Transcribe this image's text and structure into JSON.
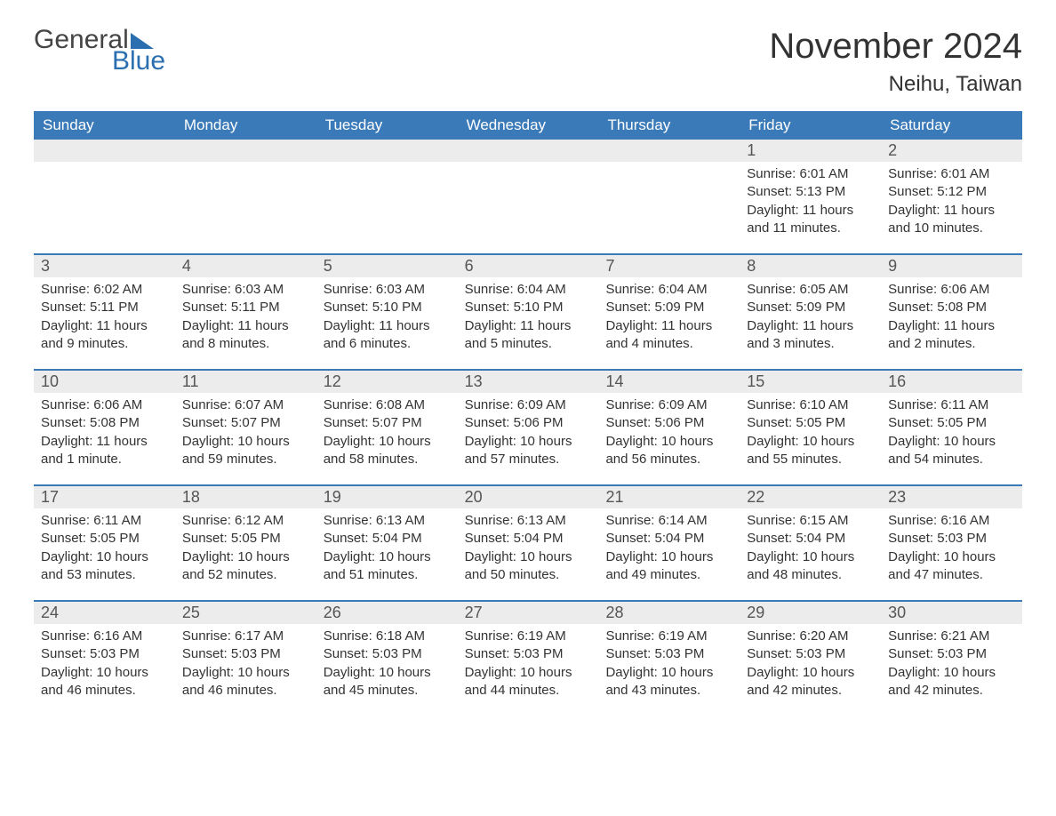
{
  "logo": {
    "line1": "General",
    "line2": "Blue"
  },
  "title": "November 2024",
  "location": "Neihu, Taiwan",
  "colors": {
    "header_bg": "#3b7ab8",
    "header_text": "#ffffff",
    "day_number_bg": "#ececec",
    "border": "#3b7ab8",
    "body_text": "#333333",
    "logo_blue": "#2b6fb0"
  },
  "weekdays": [
    "Sunday",
    "Monday",
    "Tuesday",
    "Wednesday",
    "Thursday",
    "Friday",
    "Saturday"
  ],
  "weeks": [
    [
      {
        "empty": true
      },
      {
        "empty": true
      },
      {
        "empty": true
      },
      {
        "empty": true
      },
      {
        "empty": true
      },
      {
        "day": "1",
        "sunrise": "Sunrise: 6:01 AM",
        "sunset": "Sunset: 5:13 PM",
        "daylight": "Daylight: 11 hours and 11 minutes."
      },
      {
        "day": "2",
        "sunrise": "Sunrise: 6:01 AM",
        "sunset": "Sunset: 5:12 PM",
        "daylight": "Daylight: 11 hours and 10 minutes."
      }
    ],
    [
      {
        "day": "3",
        "sunrise": "Sunrise: 6:02 AM",
        "sunset": "Sunset: 5:11 PM",
        "daylight": "Daylight: 11 hours and 9 minutes."
      },
      {
        "day": "4",
        "sunrise": "Sunrise: 6:03 AM",
        "sunset": "Sunset: 5:11 PM",
        "daylight": "Daylight: 11 hours and 8 minutes."
      },
      {
        "day": "5",
        "sunrise": "Sunrise: 6:03 AM",
        "sunset": "Sunset: 5:10 PM",
        "daylight": "Daylight: 11 hours and 6 minutes."
      },
      {
        "day": "6",
        "sunrise": "Sunrise: 6:04 AM",
        "sunset": "Sunset: 5:10 PM",
        "daylight": "Daylight: 11 hours and 5 minutes."
      },
      {
        "day": "7",
        "sunrise": "Sunrise: 6:04 AM",
        "sunset": "Sunset: 5:09 PM",
        "daylight": "Daylight: 11 hours and 4 minutes."
      },
      {
        "day": "8",
        "sunrise": "Sunrise: 6:05 AM",
        "sunset": "Sunset: 5:09 PM",
        "daylight": "Daylight: 11 hours and 3 minutes."
      },
      {
        "day": "9",
        "sunrise": "Sunrise: 6:06 AM",
        "sunset": "Sunset: 5:08 PM",
        "daylight": "Daylight: 11 hours and 2 minutes."
      }
    ],
    [
      {
        "day": "10",
        "sunrise": "Sunrise: 6:06 AM",
        "sunset": "Sunset: 5:08 PM",
        "daylight": "Daylight: 11 hours and 1 minute."
      },
      {
        "day": "11",
        "sunrise": "Sunrise: 6:07 AM",
        "sunset": "Sunset: 5:07 PM",
        "daylight": "Daylight: 10 hours and 59 minutes."
      },
      {
        "day": "12",
        "sunrise": "Sunrise: 6:08 AM",
        "sunset": "Sunset: 5:07 PM",
        "daylight": "Daylight: 10 hours and 58 minutes."
      },
      {
        "day": "13",
        "sunrise": "Sunrise: 6:09 AM",
        "sunset": "Sunset: 5:06 PM",
        "daylight": "Daylight: 10 hours and 57 minutes."
      },
      {
        "day": "14",
        "sunrise": "Sunrise: 6:09 AM",
        "sunset": "Sunset: 5:06 PM",
        "daylight": "Daylight: 10 hours and 56 minutes."
      },
      {
        "day": "15",
        "sunrise": "Sunrise: 6:10 AM",
        "sunset": "Sunset: 5:05 PM",
        "daylight": "Daylight: 10 hours and 55 minutes."
      },
      {
        "day": "16",
        "sunrise": "Sunrise: 6:11 AM",
        "sunset": "Sunset: 5:05 PM",
        "daylight": "Daylight: 10 hours and 54 minutes."
      }
    ],
    [
      {
        "day": "17",
        "sunrise": "Sunrise: 6:11 AM",
        "sunset": "Sunset: 5:05 PM",
        "daylight": "Daylight: 10 hours and 53 minutes."
      },
      {
        "day": "18",
        "sunrise": "Sunrise: 6:12 AM",
        "sunset": "Sunset: 5:05 PM",
        "daylight": "Daylight: 10 hours and 52 minutes."
      },
      {
        "day": "19",
        "sunrise": "Sunrise: 6:13 AM",
        "sunset": "Sunset: 5:04 PM",
        "daylight": "Daylight: 10 hours and 51 minutes."
      },
      {
        "day": "20",
        "sunrise": "Sunrise: 6:13 AM",
        "sunset": "Sunset: 5:04 PM",
        "daylight": "Daylight: 10 hours and 50 minutes."
      },
      {
        "day": "21",
        "sunrise": "Sunrise: 6:14 AM",
        "sunset": "Sunset: 5:04 PM",
        "daylight": "Daylight: 10 hours and 49 minutes."
      },
      {
        "day": "22",
        "sunrise": "Sunrise: 6:15 AM",
        "sunset": "Sunset: 5:04 PM",
        "daylight": "Daylight: 10 hours and 48 minutes."
      },
      {
        "day": "23",
        "sunrise": "Sunrise: 6:16 AM",
        "sunset": "Sunset: 5:03 PM",
        "daylight": "Daylight: 10 hours and 47 minutes."
      }
    ],
    [
      {
        "day": "24",
        "sunrise": "Sunrise: 6:16 AM",
        "sunset": "Sunset: 5:03 PM",
        "daylight": "Daylight: 10 hours and 46 minutes."
      },
      {
        "day": "25",
        "sunrise": "Sunrise: 6:17 AM",
        "sunset": "Sunset: 5:03 PM",
        "daylight": "Daylight: 10 hours and 46 minutes."
      },
      {
        "day": "26",
        "sunrise": "Sunrise: 6:18 AM",
        "sunset": "Sunset: 5:03 PM",
        "daylight": "Daylight: 10 hours and 45 minutes."
      },
      {
        "day": "27",
        "sunrise": "Sunrise: 6:19 AM",
        "sunset": "Sunset: 5:03 PM",
        "daylight": "Daylight: 10 hours and 44 minutes."
      },
      {
        "day": "28",
        "sunrise": "Sunrise: 6:19 AM",
        "sunset": "Sunset: 5:03 PM",
        "daylight": "Daylight: 10 hours and 43 minutes."
      },
      {
        "day": "29",
        "sunrise": "Sunrise: 6:20 AM",
        "sunset": "Sunset: 5:03 PM",
        "daylight": "Daylight: 10 hours and 42 minutes."
      },
      {
        "day": "30",
        "sunrise": "Sunrise: 6:21 AM",
        "sunset": "Sunset: 5:03 PM",
        "daylight": "Daylight: 10 hours and 42 minutes."
      }
    ]
  ]
}
